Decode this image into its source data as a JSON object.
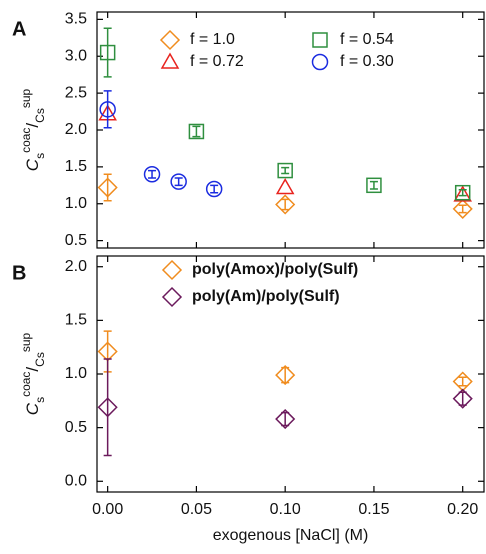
{
  "chart_data": [
    {
      "type": "scatter",
      "panel_label": "A",
      "ylabel_parts": [
        "C",
        "s",
        "coac",
        "/",
        "C",
        "s",
        "sup"
      ],
      "xlim": [
        -0.006,
        0.212
      ],
      "xticks": [
        0,
        0.05,
        0.1,
        0.15,
        0.2
      ],
      "ylim": [
        0.4,
        3.6
      ],
      "yticks": [
        {
          "value": 0.5,
          "label": "0.5"
        },
        {
          "value": 1,
          "label": "1.0"
        },
        {
          "value": 1.5,
          "label": "1.5"
        },
        {
          "value": 2,
          "label": "2.0"
        },
        {
          "value": 2.5,
          "label": "2.5"
        },
        {
          "value": 3,
          "label": "3.0"
        },
        {
          "value": 3.5,
          "label": "3.5"
        }
      ],
      "legend": "top",
      "series": [
        {
          "name": "f = 1.0",
          "color": "#f08c1e",
          "marker": "diamond",
          "x": [
            0,
            0.1,
            0.2
          ],
          "values": [
            1.22,
            0.99,
            0.93
          ],
          "errors": [
            0.18,
            0.07,
            0.05
          ]
        },
        {
          "name": "f = 0.72",
          "color": "#e8231e",
          "marker": "triangle",
          "x": [
            0,
            0.1,
            0.2
          ],
          "values": [
            2.22,
            1.22,
            1.12
          ]
        },
        {
          "name": "f = 0.54",
          "color": "#2f8f3f",
          "marker": "square",
          "x": [
            0,
            0.05,
            0.1,
            0.15,
            0.2
          ],
          "values": [
            3.05,
            1.98,
            1.45,
            1.25,
            1.15
          ],
          "errors": [
            0.33,
            0.07,
            0.04,
            0.05,
            0.04
          ]
        },
        {
          "name": "f = 0.30",
          "color": "#1b2ce0",
          "marker": "circle",
          "x": [
            0,
            0.025,
            0.04,
            0.06
          ],
          "values": [
            2.28,
            1.4,
            1.3,
            1.2
          ],
          "errors": [
            0.25,
            0.05,
            0.05,
            0.05
          ]
        }
      ]
    },
    {
      "type": "scatter",
      "panel_label": "B",
      "ylabel_parts": [
        "C",
        "s",
        "coac",
        "/",
        "C",
        "s",
        "sup"
      ],
      "xlabel": "exogenous [NaCl] (M)",
      "xlim": [
        -0.006,
        0.212
      ],
      "xticks": [
        {
          "value": 0,
          "label": "0.00"
        },
        0.05,
        {
          "value": 0.1,
          "label": "0.10"
        },
        0.15,
        {
          "value": 0.2,
          "label": "0.20"
        }
      ],
      "ylim": [
        -0.1,
        2.1
      ],
      "yticks": [
        {
          "value": 0,
          "label": "0.0"
        },
        0.5,
        {
          "value": 1,
          "label": "1.0"
        },
        1.5,
        {
          "value": 2,
          "label": "2.0"
        }
      ],
      "legend": "top",
      "series": [
        {
          "name": "poly(Amox)/poly(Sulf)",
          "color": "#f08c1e",
          "marker": "diamond",
          "x": [
            0,
            0.1,
            0.2
          ],
          "values": [
            1.21,
            0.99,
            0.93
          ],
          "errors": [
            0.19,
            0.07,
            0.04
          ]
        },
        {
          "name": "poly(Am)/poly(Sulf)",
          "color": "#6b1a5c",
          "marker": "diamond",
          "x": [
            0,
            0.1,
            0.2
          ],
          "values": [
            0.69,
            0.58,
            0.77
          ],
          "errors": [
            0.45,
            0.06,
            0.06
          ]
        }
      ]
    }
  ]
}
